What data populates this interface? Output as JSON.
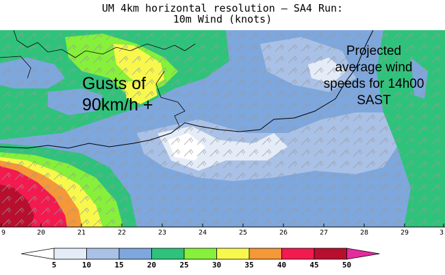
{
  "title": {
    "line1": "UM 4km horizontal resolution — SA4 Run:",
    "line2": "10m Wind (knots)"
  },
  "annotations": {
    "gusts": [
      "Gusts of",
      "90km/h +"
    ],
    "projected": [
      "Projected",
      "average wind",
      "speeds for 14h00",
      "SAST"
    ]
  },
  "map": {
    "lon_ticks": [
      "9",
      "20",
      "21",
      "22",
      "23",
      "24",
      "25",
      "26",
      "27",
      "28",
      "29",
      "3"
    ],
    "lon_range": [
      18.9,
      30.0
    ]
  },
  "legend": {
    "unit": "knots",
    "levels": [
      "5",
      "10",
      "15",
      "20",
      "25",
      "30",
      "35",
      "40",
      "45",
      "50"
    ],
    "colors": [
      "#ffffff",
      "#e4ecf8",
      "#a9c1e6",
      "#7ea7dd",
      "#2fc27b",
      "#86f03a",
      "#f8f84c",
      "#f59838",
      "#f21a4f",
      "#b80f2f",
      "#e62b9e"
    ]
  }
}
